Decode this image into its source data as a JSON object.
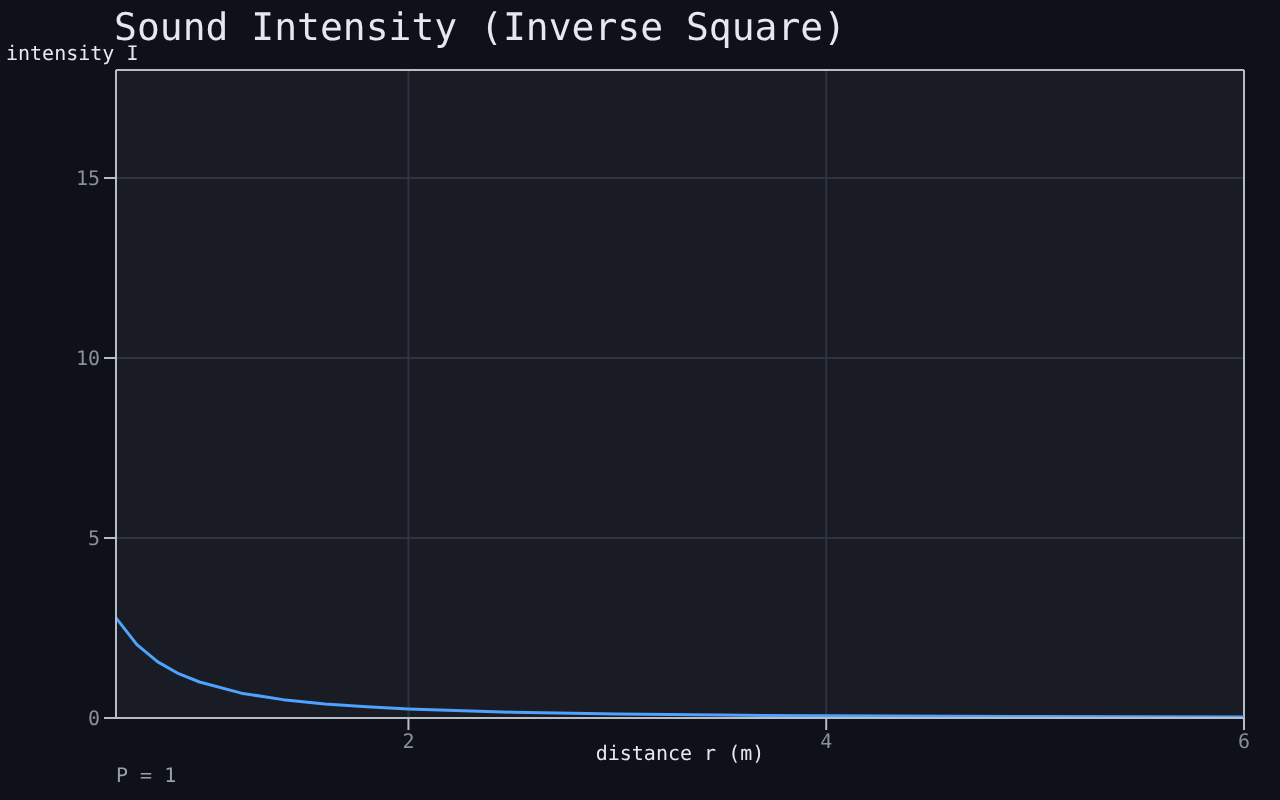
{
  "chart_data": {
    "type": "line",
    "title": "Sound Intensity (Inverse Square)",
    "xlabel": "distance r (m)",
    "ylabel": "intensity I",
    "annotations": [
      "P = 1"
    ],
    "x": [
      0.6,
      0.7,
      0.8,
      0.9,
      1.0,
      1.2,
      1.4,
      1.6,
      1.8,
      2.0,
      2.5,
      3.0,
      3.5,
      4.0,
      5.0,
      6.0
    ],
    "series": [
      {
        "color": "#4da3ff",
        "values": [
          2.78,
          2.04,
          1.56,
          1.23,
          1.0,
          0.69,
          0.51,
          0.39,
          0.31,
          0.25,
          0.16,
          0.11,
          0.08,
          0.06,
          0.04,
          0.03
        ]
      }
    ],
    "xlim": [
      0.6,
      6
    ],
    "xticks": [
      2,
      4,
      6
    ],
    "ylim": [
      0,
      18
    ],
    "yticks": [
      0,
      5,
      10,
      15
    ],
    "grid": true,
    "legend": false,
    "marker": "none",
    "line_style": "solid"
  }
}
